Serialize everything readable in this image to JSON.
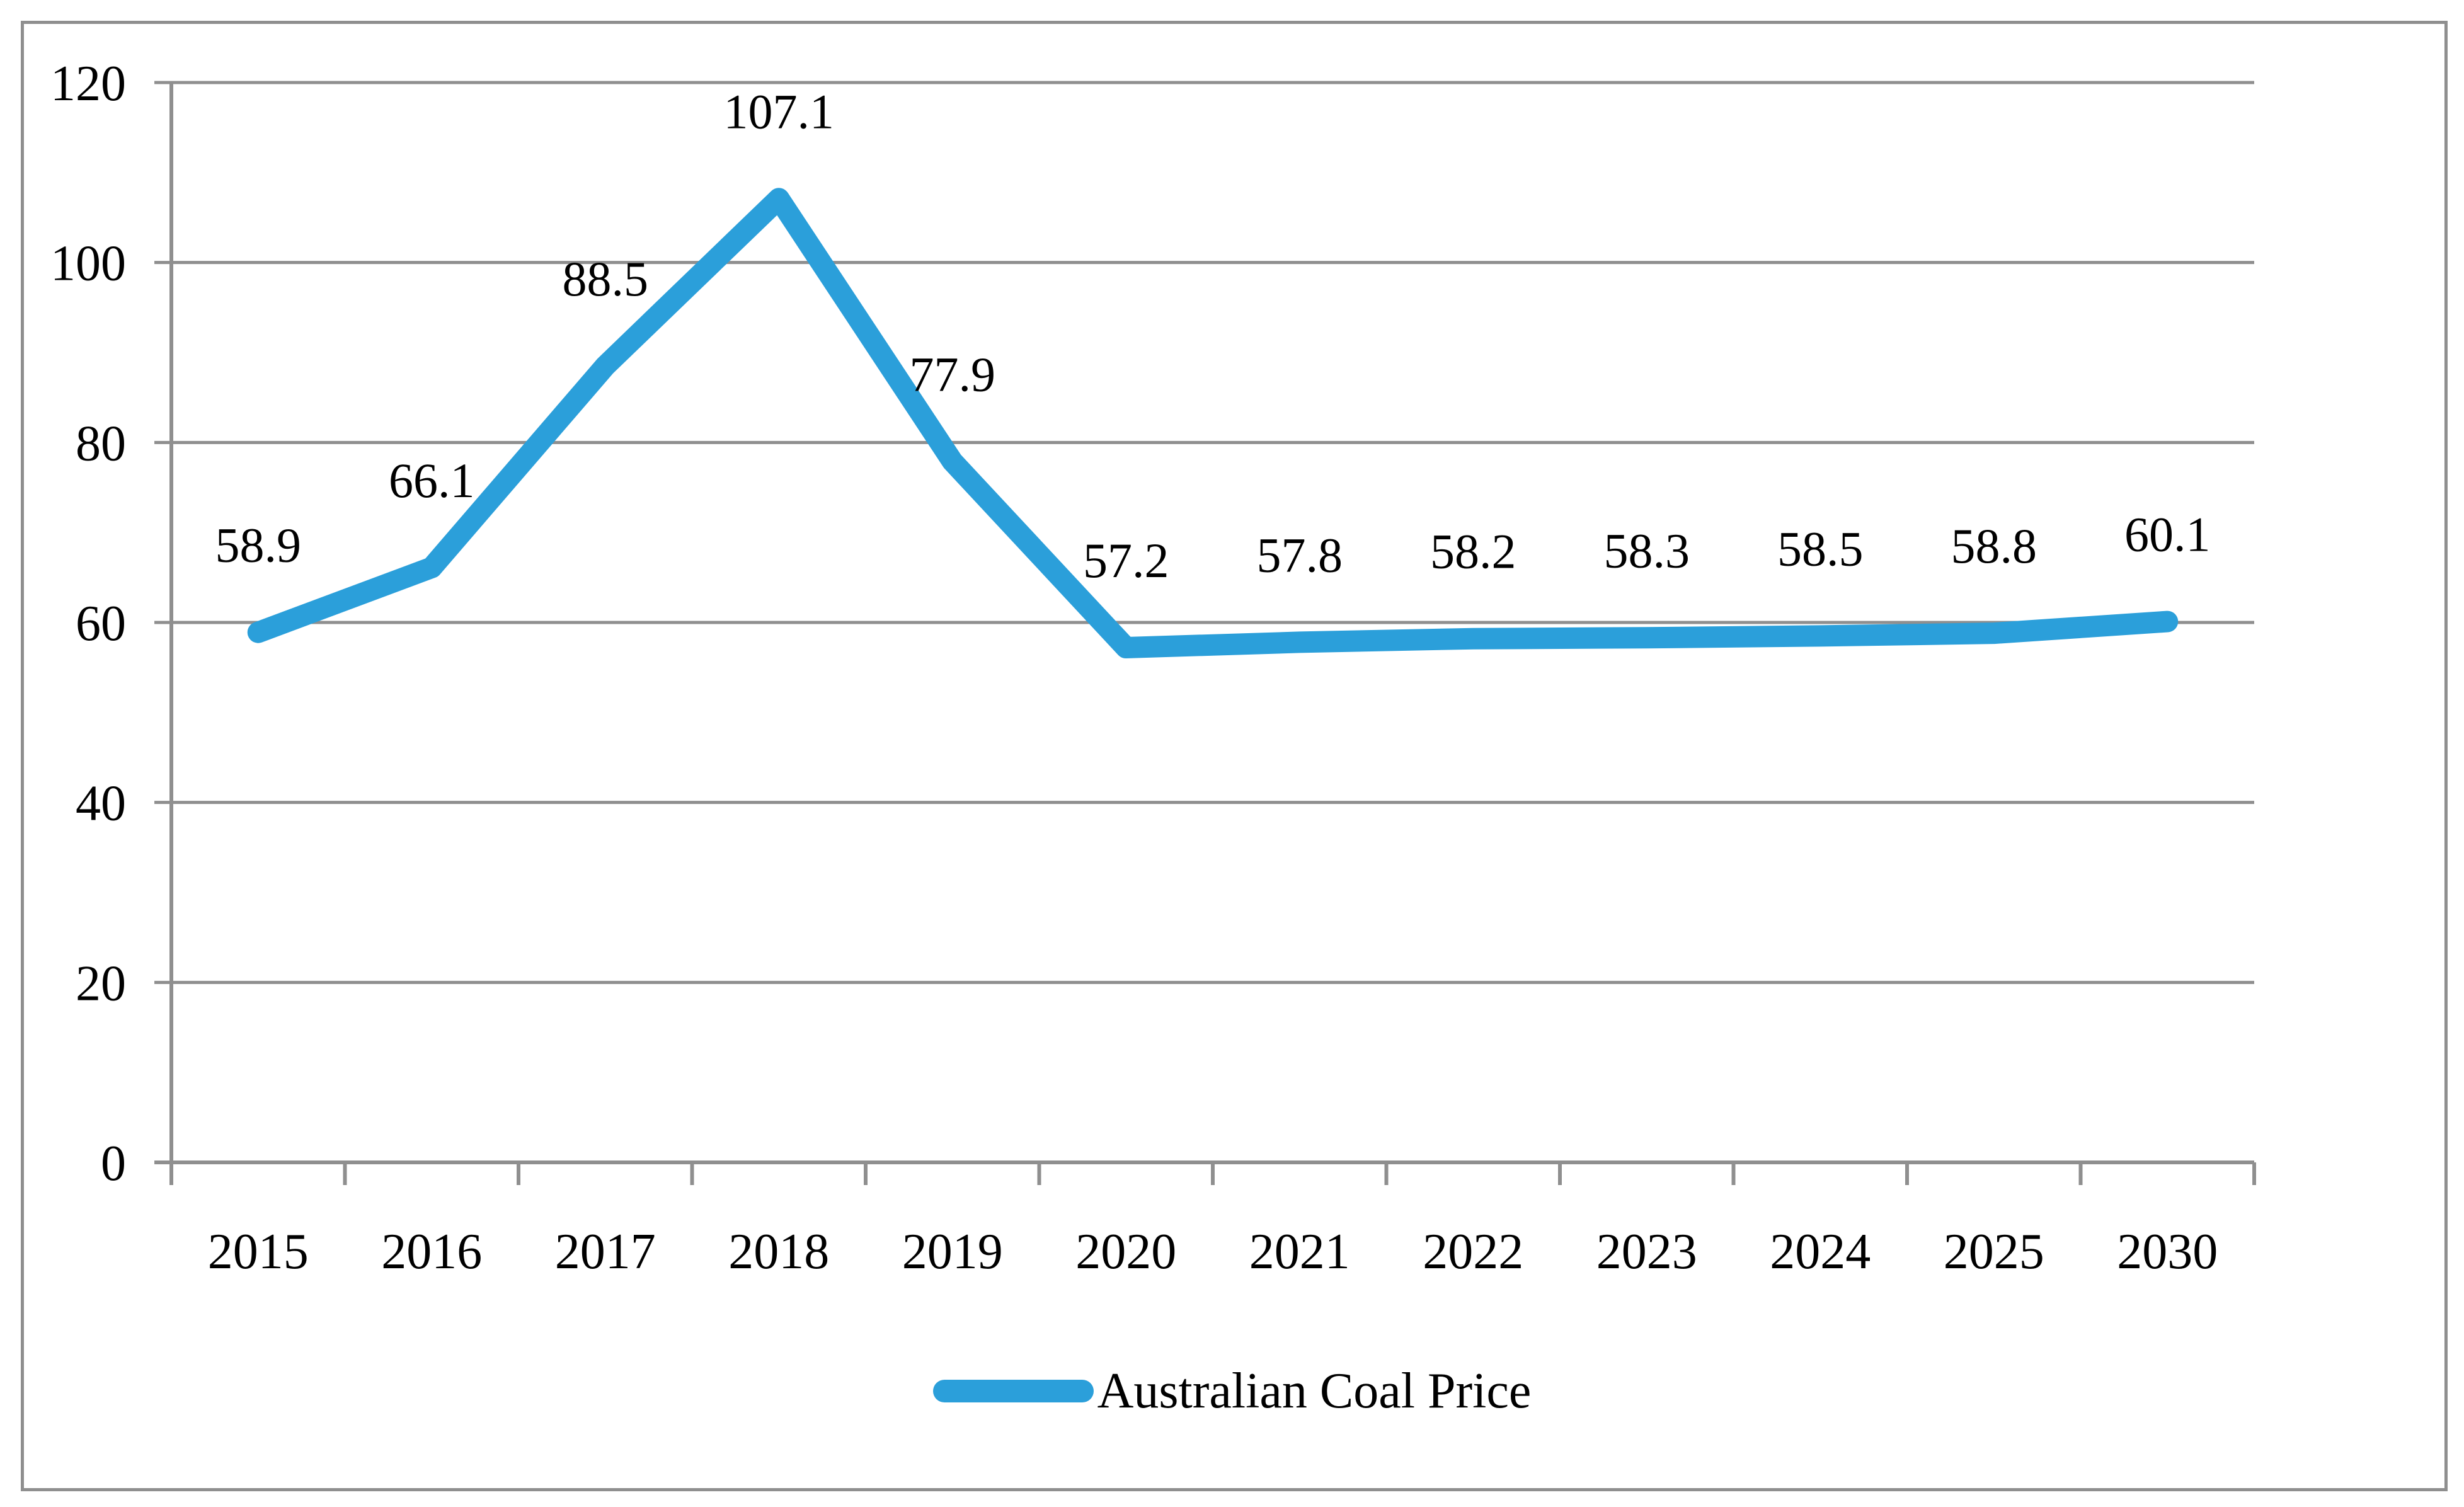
{
  "chart_data": {
    "type": "line",
    "title": "",
    "xlabel": "",
    "ylabel": "",
    "categories": [
      "2015",
      "2016",
      "2017",
      "2018",
      "2019",
      "2020",
      "2021",
      "2022",
      "2023",
      "2024",
      "2025",
      "2030"
    ],
    "series": [
      {
        "name": "Australian Coal Price",
        "values": [
          58.9,
          66.1,
          88.5,
          107.1,
          77.9,
          57.2,
          57.8,
          58.2,
          58.3,
          58.5,
          58.8,
          60.1
        ]
      }
    ],
    "data_labels": [
      "58.9",
      "66.1",
      "88.5",
      "107.1",
      "77.9",
      "57.2",
      "57.8",
      "58.2",
      "58.3",
      "58.5",
      "58.8",
      "60.1"
    ],
    "ylim": [
      0,
      120
    ],
    "y_ticks": [
      0,
      20,
      40,
      60,
      80,
      100,
      120
    ],
    "grid": true,
    "legend_position": "bottom",
    "line_color": "#2B9FDA",
    "grid_color": "#8F8F8F",
    "text_color": "#000000",
    "background_color": "#FFFFFF"
  },
  "legend": {
    "label": "Australian Coal Price"
  }
}
